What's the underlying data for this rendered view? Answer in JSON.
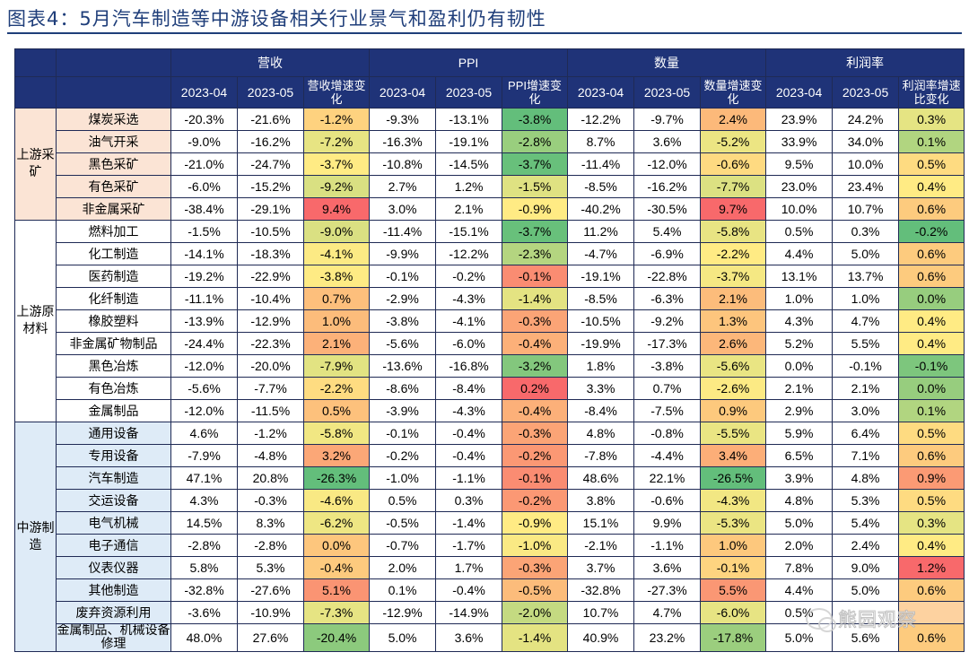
{
  "title": "图表4：5月汽车制造等中游设备相关行业景气和盈利仍有韧性",
  "headers": {
    "groups": [
      "营收",
      "PPI",
      "数量",
      "利润率"
    ],
    "sub": [
      "2023-04",
      "2023-05",
      "营收增速变化",
      "2023-04",
      "2023-05",
      "PPI增速变化",
      "2023-04",
      "2023-05",
      "数量增速变化",
      "2023-04",
      "2023-05",
      "利润率增速比变化"
    ]
  },
  "sectors": [
    {
      "label": "上游采矿",
      "cls": "g-upmine",
      "rows": [
        {
          "name": "煤炭采选",
          "v": [
            "-20.3%",
            "-21.6%",
            "-1.2%",
            "-9.3%",
            "-13.1%",
            "-3.8%",
            "-12.2%",
            "-9.7%",
            "2.4%",
            "23.9%",
            "24.2%",
            "0.3%"
          ]
        },
        {
          "name": "油气开采",
          "v": [
            "-9.0%",
            "-16.2%",
            "-7.2%",
            "-16.3%",
            "-19.1%",
            "-2.8%",
            "8.7%",
            "3.6%",
            "-5.2%",
            "33.9%",
            "34.0%",
            "0.1%"
          ]
        },
        {
          "name": "黑色采矿",
          "v": [
            "-21.0%",
            "-24.7%",
            "-3.7%",
            "-10.8%",
            "-14.5%",
            "-3.7%",
            "-11.4%",
            "-12.0%",
            "-0.6%",
            "9.5%",
            "10.0%",
            "0.5%"
          ]
        },
        {
          "name": "有色采矿",
          "v": [
            "-6.0%",
            "-15.2%",
            "-9.2%",
            "2.7%",
            "1.2%",
            "-1.5%",
            "-8.5%",
            "-16.2%",
            "-7.7%",
            "23.0%",
            "23.4%",
            "0.4%"
          ]
        },
        {
          "name": "非金属采矿",
          "v": [
            "-38.4%",
            "-29.1%",
            "9.4%",
            "3.0%",
            "2.1%",
            "-0.9%",
            "-40.2%",
            "-30.5%",
            "9.7%",
            "10.0%",
            "10.7%",
            "0.6%"
          ]
        }
      ]
    },
    {
      "label": "上游原材料",
      "cls": "g-upraw",
      "rows": [
        {
          "name": "燃料加工",
          "v": [
            "-1.5%",
            "-10.5%",
            "-9.0%",
            "-11.4%",
            "-15.1%",
            "-3.7%",
            "11.2%",
            "5.4%",
            "-5.8%",
            "0.5%",
            "0.3%",
            "-0.2%"
          ]
        },
        {
          "name": "化工制造",
          "v": [
            "-14.1%",
            "-18.3%",
            "-4.1%",
            "-9.9%",
            "-12.2%",
            "-2.3%",
            "-4.7%",
            "-6.9%",
            "-2.2%",
            "4.4%",
            "5.0%",
            "0.6%"
          ]
        },
        {
          "name": "医药制造",
          "v": [
            "-19.2%",
            "-22.9%",
            "-3.8%",
            "-0.1%",
            "-0.2%",
            "-0.1%",
            "-19.1%",
            "-22.8%",
            "-3.7%",
            "13.1%",
            "13.7%",
            "0.6%"
          ]
        },
        {
          "name": "化纤制造",
          "v": [
            "-11.1%",
            "-10.4%",
            "0.7%",
            "-2.9%",
            "-4.3%",
            "-1.4%",
            "-8.5%",
            "-6.3%",
            "2.1%",
            "1.0%",
            "1.0%",
            "0.0%"
          ]
        },
        {
          "name": "橡胶塑料",
          "v": [
            "-13.9%",
            "-12.9%",
            "1.0%",
            "-3.8%",
            "-4.1%",
            "-0.3%",
            "-10.5%",
            "-9.2%",
            "1.3%",
            "4.3%",
            "4.7%",
            "0.4%"
          ]
        },
        {
          "name": "非金属矿物制品",
          "v": [
            "-24.4%",
            "-22.3%",
            "2.1%",
            "-5.6%",
            "-6.0%",
            "-0.4%",
            "-19.9%",
            "-17.3%",
            "2.6%",
            "5.2%",
            "5.5%",
            "0.4%"
          ]
        },
        {
          "name": "黑色冶炼",
          "v": [
            "-12.0%",
            "-20.0%",
            "-7.9%",
            "-13.6%",
            "-16.8%",
            "-3.2%",
            "1.8%",
            "-3.8%",
            "-5.6%",
            "0.0%",
            "-0.1%",
            "-0.1%"
          ]
        },
        {
          "name": "有色冶炼",
          "v": [
            "-5.6%",
            "-7.7%",
            "-2.2%",
            "-8.6%",
            "-8.4%",
            "0.2%",
            "3.3%",
            "0.7%",
            "-2.6%",
            "2.1%",
            "2.1%",
            "0.0%"
          ]
        },
        {
          "name": "金属制品",
          "v": [
            "-12.0%",
            "-11.5%",
            "0.5%",
            "-3.9%",
            "-4.3%",
            "-0.4%",
            "-8.4%",
            "-7.5%",
            "0.9%",
            "2.9%",
            "3.0%",
            "0.1%"
          ]
        }
      ]
    },
    {
      "label": "中游制造",
      "cls": "g-mid",
      "rows": [
        {
          "name": "通用设备",
          "v": [
            "4.6%",
            "-1.2%",
            "-5.8%",
            "-0.1%",
            "-0.4%",
            "-0.3%",
            "4.8%",
            "-0.8%",
            "-5.5%",
            "5.9%",
            "6.4%",
            "0.5%"
          ]
        },
        {
          "name": "专用设备",
          "v": [
            "-7.9%",
            "-4.8%",
            "3.2%",
            "-0.2%",
            "-0.4%",
            "-0.2%",
            "-7.8%",
            "-4.4%",
            "3.4%",
            "6.5%",
            "7.1%",
            "0.6%"
          ]
        },
        {
          "name": "汽车制造",
          "v": [
            "47.1%",
            "20.8%",
            "-26.3%",
            "-1.0%",
            "-1.1%",
            "-0.1%",
            "48.6%",
            "22.1%",
            "-26.5%",
            "3.9%",
            "4.8%",
            "0.9%"
          ]
        },
        {
          "name": "交运设备",
          "v": [
            "4.3%",
            "-0.3%",
            "-4.6%",
            "0.5%",
            "0.3%",
            "-0.2%",
            "3.8%",
            "-0.6%",
            "-4.3%",
            "4.8%",
            "5.3%",
            "0.5%"
          ]
        },
        {
          "name": "电气机械",
          "v": [
            "14.5%",
            "8.3%",
            "-6.2%",
            "-0.5%",
            "-1.4%",
            "-0.9%",
            "15.1%",
            "9.9%",
            "-5.3%",
            "5.0%",
            "5.4%",
            "0.3%"
          ]
        },
        {
          "name": "电子通信",
          "v": [
            "-2.8%",
            "-2.8%",
            "0.0%",
            "-0.7%",
            "-1.7%",
            "-1.0%",
            "-2.1%",
            "-1.1%",
            "1.0%",
            "2.0%",
            "2.4%",
            "0.4%"
          ]
        },
        {
          "name": "仪表仪器",
          "v": [
            "5.8%",
            "5.3%",
            "-0.4%",
            "2.0%",
            "1.7%",
            "-0.3%",
            "3.7%",
            "3.6%",
            "-0.1%",
            "7.8%",
            "9.0%",
            "1.2%"
          ]
        },
        {
          "name": "其他制造",
          "v": [
            "-32.8%",
            "-27.6%",
            "5.1%",
            "0.1%",
            "-0.4%",
            "-0.5%",
            "-32.8%",
            "-27.3%",
            "5.5%",
            "4.4%",
            "5.0%",
            "0.6%"
          ]
        },
        {
          "name": "废弃资源利用",
          "v": [
            "-3.6%",
            "-10.9%",
            "-7.3%",
            "-12.9%",
            "-14.9%",
            "-2.0%",
            "10.7%",
            "4.7%",
            "-6.0%",
            "0.5%",
            "",
            ""
          ]
        },
        {
          "name": "金属制品、机械设备修理",
          "v": [
            "48.0%",
            "27.6%",
            "-20.4%",
            "5.0%",
            "3.6%",
            "-1.4%",
            "40.9%",
            "23.2%",
            "-17.8%",
            "5.0%",
            "5.6%",
            "0.6%"
          ]
        }
      ]
    }
  ],
  "heat_colors": {
    "low": "#63be7b",
    "mid": "#ffeb84",
    "high": "#f8696b"
  },
  "watermark": {
    "icon": "wechat-icon",
    "text": "熊园观察"
  }
}
